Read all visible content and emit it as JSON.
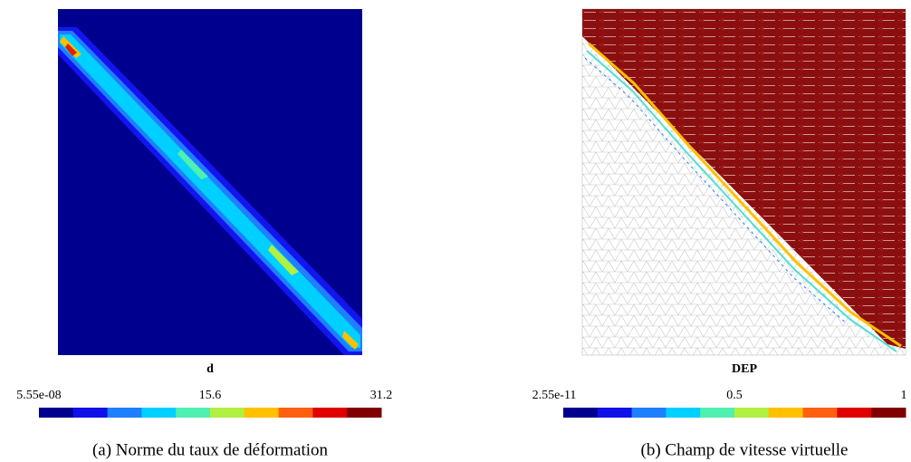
{
  "panels": [
    {
      "field": "d",
      "colorbar": {
        "min": "5.55e-08",
        "mid": "15.6",
        "max": "31.2"
      },
      "caption": "(a) Norme du taux de déformation"
    },
    {
      "field": "DEP",
      "colorbar": {
        "min": "2.55e-11",
        "mid": "0.5",
        "max": "1"
      },
      "caption": "(b) Champ de vitesse virtuelle"
    }
  ]
}
